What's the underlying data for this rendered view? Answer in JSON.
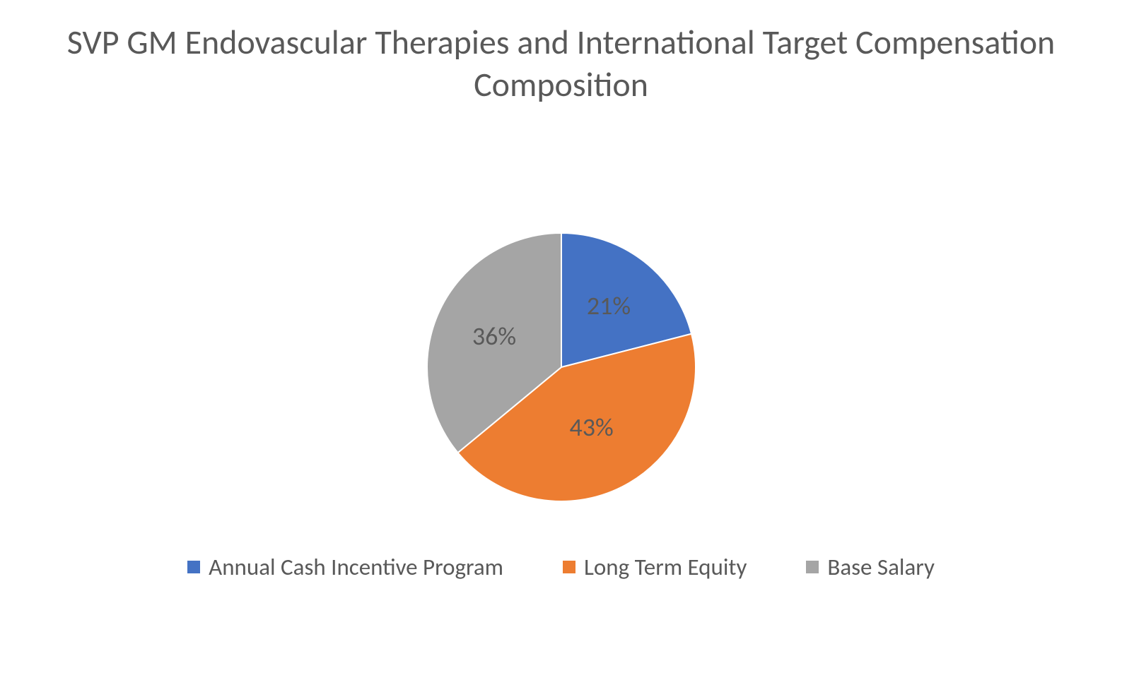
{
  "chart": {
    "type": "pie",
    "title": "SVP GM Endovascular Therapies and International Target Compensation Composition",
    "title_fontsize": 48,
    "title_color": "#595959",
    "background_color": "#ffffff",
    "pie": {
      "radius": 190,
      "start_angle_deg": -90,
      "slice_border_color": "#ffffff",
      "slice_border_width": 2
    },
    "label_fontsize": 36,
    "label_color": "#595959",
    "legend_fontsize": 33,
    "legend_swatch_size": 18,
    "slices": [
      {
        "name": "Annual Cash Incentive Program",
        "value": 21,
        "label": "21%",
        "color": "#4472c4",
        "label_radius_factor": 0.58
      },
      {
        "name": "Long Term Equity",
        "value": 43,
        "label": "43%",
        "color": "#ed7d31",
        "label_radius_factor": 0.5
      },
      {
        "name": "Base Salary",
        "value": 36,
        "label": "36%",
        "color": "#a5a5a5",
        "label_radius_factor": 0.55
      }
    ]
  }
}
